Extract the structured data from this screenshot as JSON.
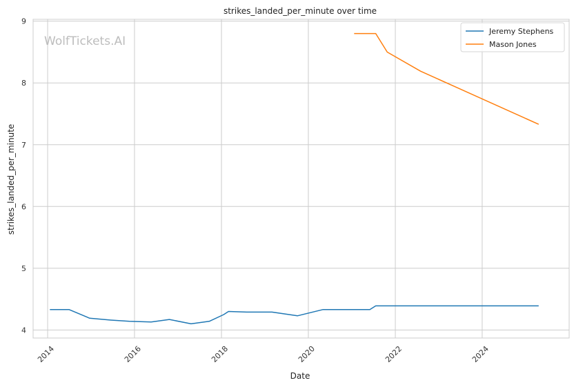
{
  "chart_data": {
    "type": "line",
    "title": "strikes_landed_per_minute over time",
    "xlabel": "Date",
    "ylabel": "strikes_landed_per_minute",
    "watermark": "WolfTickets.AI",
    "xlim": [
      "2013-09-01",
      "2026-01-01"
    ],
    "ylim": [
      3.87,
      9.03
    ],
    "x_ticks": [
      "2014",
      "2016",
      "2018",
      "2020",
      "2022",
      "2024"
    ],
    "y_ticks": [
      4,
      5,
      6,
      7,
      8,
      9
    ],
    "grid": true,
    "legend_position": "top-right",
    "series": [
      {
        "name": "Jeremy Stephens",
        "color": "#1f77b4",
        "points": [
          [
            "2014-01-20",
            4.33
          ],
          [
            "2014-07-01",
            4.33
          ],
          [
            "2014-12-20",
            4.19
          ],
          [
            "2015-06-15",
            4.16
          ],
          [
            "2015-11-20",
            4.14
          ],
          [
            "2016-05-20",
            4.13
          ],
          [
            "2016-10-20",
            4.17
          ],
          [
            "2017-04-20",
            4.1
          ],
          [
            "2017-09-20",
            4.14
          ],
          [
            "2018-01-20",
            4.25
          ],
          [
            "2018-03-01",
            4.3
          ],
          [
            "2018-08-01",
            4.29
          ],
          [
            "2019-03-01",
            4.29
          ],
          [
            "2019-10-01",
            4.23
          ],
          [
            "2020-05-01",
            4.33
          ],
          [
            "2021-06-01",
            4.33
          ],
          [
            "2021-07-20",
            4.39
          ],
          [
            "2022-12-01",
            4.39
          ],
          [
            "2025-04-20",
            4.39
          ]
        ]
      },
      {
        "name": "Mason Jones",
        "color": "#ff7f0e",
        "points": [
          [
            "2021-01-20",
            8.8
          ],
          [
            "2021-07-20",
            8.8
          ],
          [
            "2021-10-25",
            8.5
          ],
          [
            "2022-08-01",
            8.19
          ],
          [
            "2025-04-20",
            7.33
          ]
        ]
      }
    ]
  }
}
